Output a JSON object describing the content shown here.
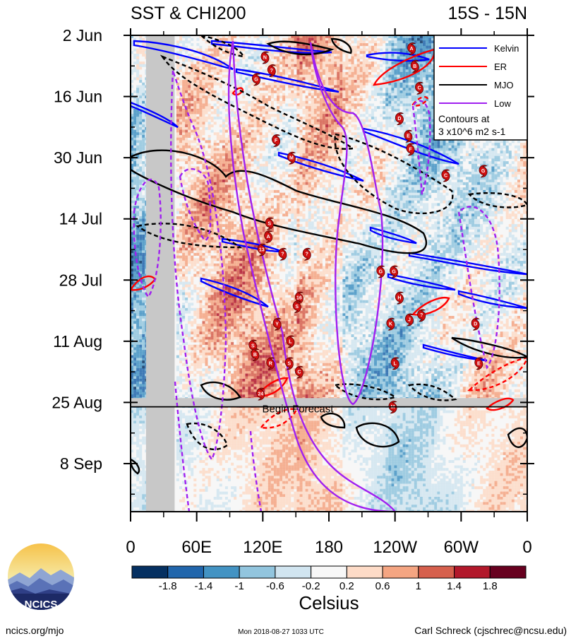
{
  "chart_data": {
    "type": "heatmap",
    "title_left": "SST & CHI200",
    "title_right": "15S - 15N",
    "xlabel": "",
    "ylabel": "",
    "x_ticks": [
      {
        "lon": 0,
        "label": "0"
      },
      {
        "lon": 60,
        "label": "60E"
      },
      {
        "lon": 120,
        "label": "120E"
      },
      {
        "lon": 180,
        "label": "180"
      },
      {
        "lon": 240,
        "label": "120W"
      },
      {
        "lon": 300,
        "label": "60W"
      },
      {
        "lon": 360,
        "label": "0"
      }
    ],
    "x_range": [
      0,
      360
    ],
    "y_ticks": [
      {
        "date": "2018-06-02",
        "label": "2 Jun"
      },
      {
        "date": "2018-06-16",
        "label": "16 Jun"
      },
      {
        "date": "2018-06-30",
        "label": "30 Jun"
      },
      {
        "date": "2018-07-14",
        "label": "14 Jul"
      },
      {
        "date": "2018-07-28",
        "label": "28 Jul"
      },
      {
        "date": "2018-08-11",
        "label": "11 Aug"
      },
      {
        "date": "2018-08-25",
        "label": "25 Aug"
      },
      {
        "date": "2018-09-08",
        "label": "8 Sep"
      }
    ],
    "y_range": [
      "2018-06-02",
      "2018-09-19"
    ],
    "forecast_start": "2018-08-26",
    "forecast_label": "Begin Forecast",
    "legend": {
      "position": "top-right",
      "entries": [
        {
          "name": "Kelvin",
          "color": "#0000ff",
          "dash": false
        },
        {
          "name": "ER",
          "color": "#ff0000",
          "dash": false
        },
        {
          "name": "MJO",
          "color": "#000000",
          "dash": false
        },
        {
          "name": "Low",
          "color": "#a020f0",
          "dash": false
        }
      ],
      "note_line1": "Contours at",
      "note_line2": "3 x10^6 m2 s-1"
    },
    "colorbar": {
      "title": "Celsius",
      "colors": [
        "#053061",
        "#2166ac",
        "#4393c3",
        "#92c5de",
        "#d1e5f0",
        "#f7f7f7",
        "#fddbc7",
        "#f4a582",
        "#d6604d",
        "#b2182b",
        "#67001f"
      ],
      "tick_labels": [
        "-1.8",
        "-1.4",
        "-1",
        "-0.6",
        "-0.2",
        "0.2",
        "0.6",
        "1",
        "1.4",
        "1.8"
      ]
    },
    "cyclones": [
      {
        "lon": 122,
        "date": "2018-06-07",
        "label": "N"
      },
      {
        "lon": 114,
        "date": "2018-06-12",
        "label": "G"
      },
      {
        "lon": 128,
        "date": "2018-06-10",
        "label": "?"
      },
      {
        "lon": 255,
        "date": "2018-06-05",
        "label": "A"
      },
      {
        "lon": 258,
        "date": "2018-06-09",
        "label": "B"
      },
      {
        "lon": 262,
        "date": "2018-06-14",
        "label": "C"
      },
      {
        "lon": 244,
        "date": "2018-06-21",
        "label": "D"
      },
      {
        "lon": 252,
        "date": "2018-06-25",
        "label": "E"
      },
      {
        "lon": 254,
        "date": "2018-06-28",
        "label": "F"
      },
      {
        "lon": 286,
        "date": "2018-07-04",
        "label": "C"
      },
      {
        "lon": 320,
        "date": "2018-07-03",
        "label": "G"
      },
      {
        "lon": 132,
        "date": "2018-06-26",
        "label": "F"
      },
      {
        "lon": 146,
        "date": "2018-06-30",
        "label": "M"
      },
      {
        "lon": 126,
        "date": "2018-07-15",
        "label": "S"
      },
      {
        "lon": 125,
        "date": "2018-07-18",
        "label": "A"
      },
      {
        "lon": 119,
        "date": "2018-07-21",
        "label": "13"
      },
      {
        "lon": 138,
        "date": "2018-07-22",
        "label": "?"
      },
      {
        "lon": 160,
        "date": "2018-07-22",
        "label": "?"
      },
      {
        "lon": 227,
        "date": "2018-07-26",
        "label": "G"
      },
      {
        "lon": 239,
        "date": "2018-07-26",
        "label": "G"
      },
      {
        "lon": 153,
        "date": "2018-08-01",
        "label": "16"
      },
      {
        "lon": 151,
        "date": "2018-08-03",
        "label": "S"
      },
      {
        "lon": 244,
        "date": "2018-08-01",
        "label": "H"
      },
      {
        "lon": 133,
        "date": "2018-08-07",
        "label": "Y"
      },
      {
        "lon": 236,
        "date": "2018-08-07",
        "label": "K"
      },
      {
        "lon": 253,
        "date": "2018-08-06",
        "label": "J"
      },
      {
        "lon": 264,
        "date": "2018-08-05",
        "label": "?"
      },
      {
        "lon": 313,
        "date": "2018-08-07",
        "label": "D"
      },
      {
        "lon": 145,
        "date": "2018-08-11",
        "label": "L"
      },
      {
        "lon": 111,
        "date": "2018-08-12",
        "label": "S"
      },
      {
        "lon": 113,
        "date": "2018-08-14",
        "label": "B"
      },
      {
        "lon": 127,
        "date": "2018-08-16",
        "label": "R"
      },
      {
        "lon": 144,
        "date": "2018-08-16",
        "label": "S"
      },
      {
        "lon": 153,
        "date": "2018-08-18",
        "label": "C"
      },
      {
        "lon": 240,
        "date": "2018-08-16",
        "label": "L"
      },
      {
        "lon": 316,
        "date": "2018-08-16",
        "label": "E"
      },
      {
        "lon": 118,
        "date": "2018-08-23",
        "label": "24"
      },
      {
        "lon": 238,
        "date": "2018-08-26",
        "label": "M"
      }
    ]
  },
  "footer": {
    "logo_text": "NCICS",
    "url": "ncics.org/mjo",
    "timestamp": "Mon 2018-08-27 1033 UTC",
    "author": "Carl Schreck (cjschrec@ncsu.edu)"
  }
}
